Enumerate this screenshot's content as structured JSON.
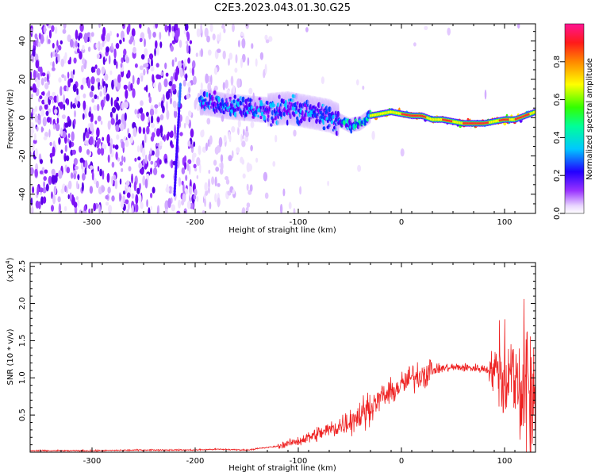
{
  "title": "C2E3.2023.043.01.30.G25",
  "chart_data": [
    {
      "type": "heatmap",
      "xlabel": "Height of straight line (km)",
      "ylabel": "Frequency (Hz)",
      "xlim": [
        -360,
        130
      ],
      "ylim": [
        -50,
        49
      ],
      "xticks": [
        -300,
        -200,
        -100,
        0,
        100
      ],
      "yticks": [
        -40,
        -20,
        0,
        20,
        40
      ],
      "colorbar": {
        "label": "Normalized spectral amplitude",
        "range": [
          0,
          1
        ],
        "ticks": [
          "0.0",
          "0.2",
          "0.4",
          "0.6",
          "0.8"
        ]
      },
      "signal_track": {
        "x": [
          -190,
          -170,
          -150,
          -130,
          -110,
          -90,
          -70,
          -50,
          -40,
          -30,
          -20,
          -10,
          0,
          10,
          20,
          30,
          40,
          50,
          60,
          70,
          80,
          90,
          100,
          110,
          120,
          130
        ],
        "frequency": [
          8,
          6,
          5,
          4,
          5,
          3,
          1,
          -4,
          -3,
          1,
          2,
          3,
          2,
          1,
          1,
          -1,
          -1,
          -2,
          -3,
          -3,
          -3,
          -2,
          -1,
          -1,
          1,
          3
        ]
      },
      "colors": [
        "#ffffff",
        "#d9b8ff",
        "#8a2be2",
        "#5500ff",
        "#0000ff",
        "#00e5ff",
        "#00ff00",
        "#ffff00",
        "#ff8800",
        "#ff0000",
        "#ff1493"
      ]
    },
    {
      "type": "line",
      "xlabel": "Height of straight line (km)",
      "ylabel": "SNR (10 * v/v)",
      "multiplier": "(x10",
      "multiplier_exp": "4",
      "multiplier_close": ")",
      "xlim": [
        -360,
        130
      ],
      "ylim": [
        0,
        2.55
      ],
      "xticks": [
        -300,
        -200,
        -100,
        0,
        100
      ],
      "yticks": [
        "0.5",
        "1.0",
        "1.5",
        "2.0",
        "2.5"
      ],
      "series": [
        {
          "color": "#ee2222",
          "x": [
            -360,
            -300,
            -250,
            -200,
            -180,
            -150,
            -120,
            -100,
            -80,
            -60,
            -40,
            -30,
            -20,
            -10,
            0,
            10,
            20,
            30,
            40,
            50,
            60,
            70,
            80,
            90,
            100,
            110,
            120,
            130
          ],
          "y": [
            0.02,
            0.02,
            0.03,
            0.03,
            0.04,
            0.03,
            0.08,
            0.15,
            0.25,
            0.35,
            0.5,
            0.6,
            0.75,
            0.8,
            0.9,
            1.0,
            1.05,
            1.1,
            1.13,
            1.14,
            1.14,
            1.13,
            1.12,
            1.1,
            1.05,
            0.95,
            0.85,
            0.8
          ]
        }
      ]
    }
  ]
}
